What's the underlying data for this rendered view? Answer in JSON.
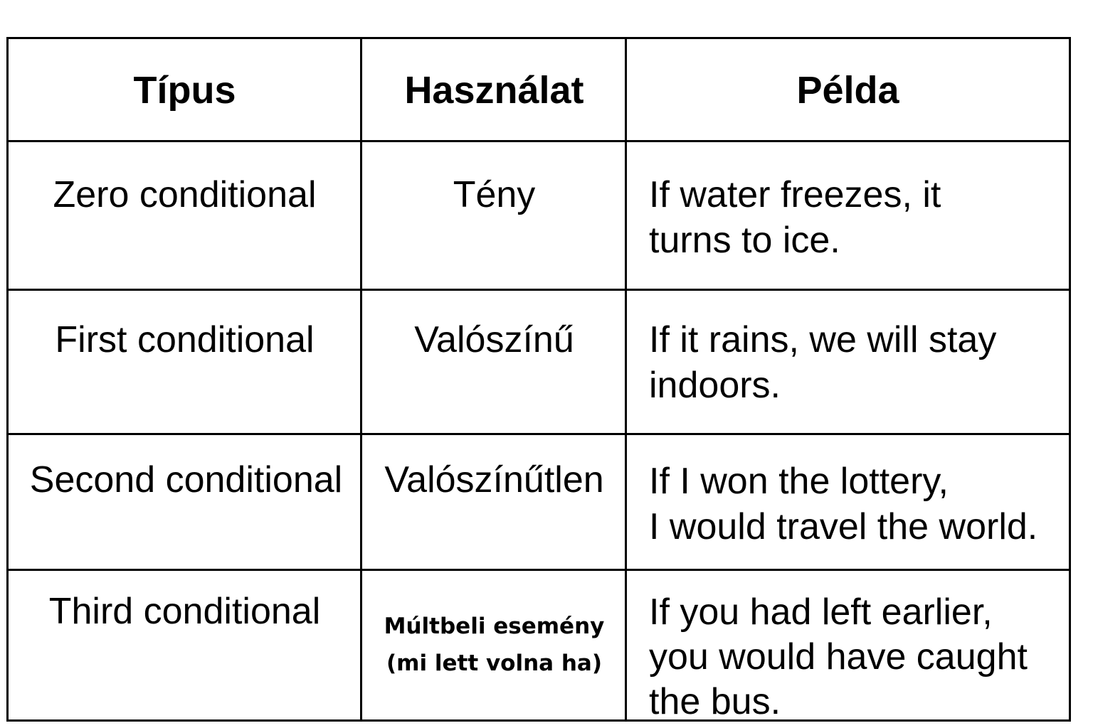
{
  "table": {
    "headers": [
      "Típus",
      "Használat",
      "Példa"
    ],
    "rows": [
      {
        "type": "Zero conditional",
        "usage": "Tény",
        "example": [
          "If water freezes, it",
          "turns to ice."
        ]
      },
      {
        "type": "First conditional",
        "usage": "Valószínű",
        "example": [
          "If it rains, we will stay",
          "indoors."
        ]
      },
      {
        "type": "Second conditional",
        "usage": "Valószínűtlen",
        "example": [
          "If I won the lottery,",
          "I would travel the world."
        ]
      },
      {
        "type": "Third conditional",
        "usage": [
          "Múltbeli esemény",
          "(mi lett volna ha)"
        ],
        "example": [
          "If you had left earlier,",
          "you would have caught",
          "the bus."
        ]
      }
    ]
  }
}
